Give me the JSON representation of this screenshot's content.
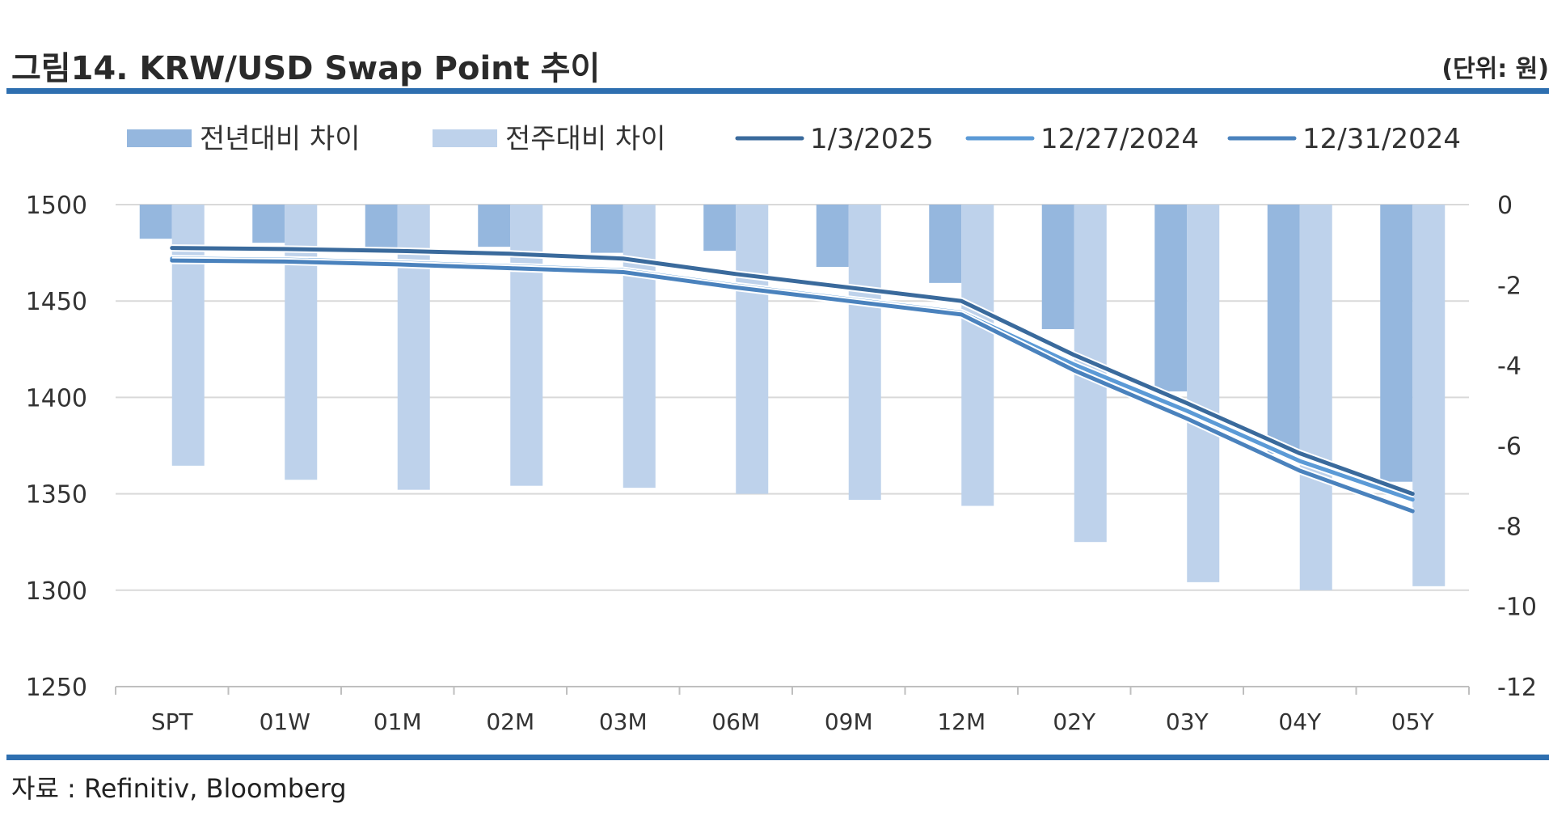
{
  "header": {
    "title": "그림14. KRW/USD Swap Point 추이",
    "unit": "(단위: 원)"
  },
  "footer": {
    "source": "자료 : Refinitiv, Bloomberg"
  },
  "colors": {
    "rule": "#2e6fb0",
    "bar_yoy": "#95b7de",
    "bar_wow": "#bed2eb",
    "line_jan3": "#3a6a9c",
    "line_dec27": "#5b9ad6",
    "line_dec31": "#4a82bd",
    "grid": "#d9d9d9",
    "axis": "#bfbfbf"
  },
  "chart_data": {
    "type": "bar+line",
    "categories": [
      "SPT",
      "01W",
      "01M",
      "02M",
      "03M",
      "06M",
      "09M",
      "12M",
      "02Y",
      "03Y",
      "04Y",
      "05Y"
    ],
    "left_axis": {
      "ylim": [
        1250,
        1500
      ],
      "ticks": [
        1500,
        1450,
        1400,
        1350,
        1300,
        1250
      ]
    },
    "right_axis": {
      "ylim": [
        -12,
        0
      ],
      "ticks": [
        0,
        -2,
        -4,
        -6,
        -8,
        -10,
        -12
      ]
    },
    "grid": true,
    "legend_position": "top",
    "bar_series": [
      {
        "name": "전년대비 차이",
        "axis": "right",
        "values": [
          -0.85,
          -0.95,
          -1.1,
          -1.05,
          -1.2,
          -1.15,
          -1.55,
          -1.95,
          -3.1,
          -4.65,
          -6.2,
          -6.9
        ]
      },
      {
        "name": "전주대비 차이",
        "axis": "right",
        "values": [
          -6.5,
          -6.85,
          -7.1,
          -7.0,
          -7.05,
          -7.2,
          -7.35,
          -7.5,
          -8.4,
          -9.4,
          -9.6,
          -9.5
        ]
      }
    ],
    "line_series": [
      {
        "name": "1/3/2025",
        "axis": "left",
        "values": [
          1477.5,
          1477,
          1476,
          1474.5,
          1472,
          1464,
          1457,
          1450,
          1422,
          1397,
          1371,
          1350
        ]
      },
      {
        "name": "12/27/2024",
        "axis": "left",
        "values": [
          1472,
          1471.5,
          1470,
          1468,
          1466,
          1458,
          1451,
          1444,
          1417,
          1393,
          1367,
          1347
        ]
      },
      {
        "name": "12/31/2024",
        "axis": "left",
        "values": [
          1471,
          1470.5,
          1469,
          1467,
          1465,
          1457,
          1450,
          1443,
          1414,
          1389,
          1362,
          1341
        ]
      }
    ]
  }
}
